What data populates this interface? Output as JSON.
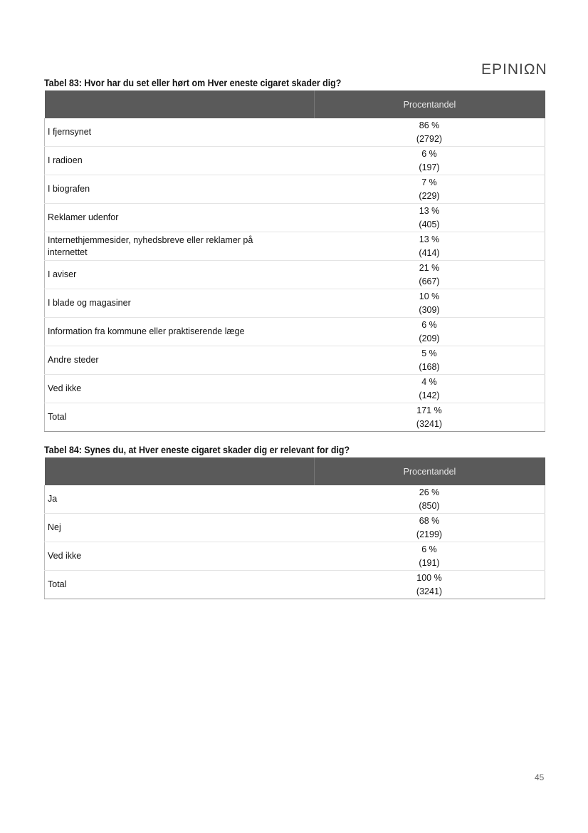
{
  "header": {
    "logo": "EPINIΩN"
  },
  "tables": [
    {
      "title": "Tabel 83: Hvor har du set eller hørt om Hver eneste cigaret skader dig?",
      "column": "Procentandel",
      "rows": [
        {
          "label": "I fjernsynet",
          "pct": "86 %",
          "n": "(2792)"
        },
        {
          "label": "I radioen",
          "pct": "6 %",
          "n": "(197)"
        },
        {
          "label": "I biografen",
          "pct": "7 %",
          "n": "(229)"
        },
        {
          "label": "Reklamer udenfor",
          "pct": "13 %",
          "n": "(405)"
        },
        {
          "label": "Internethjemmesider, nyhedsbreve eller reklamer på internettet",
          "pct": "13 %",
          "n": "(414)"
        },
        {
          "label": "I aviser",
          "pct": "21 %",
          "n": "(667)"
        },
        {
          "label": "I blade og magasiner",
          "pct": "10 %",
          "n": "(309)"
        },
        {
          "label": "Information fra kommune eller praktiserende læge",
          "pct": "6 %",
          "n": "(209)"
        },
        {
          "label": "Andre steder",
          "pct": "5 %",
          "n": "(168)"
        },
        {
          "label": "Ved ikke",
          "pct": "4 %",
          "n": "(142)"
        },
        {
          "label": "Total",
          "pct": "171 %",
          "n": "(3241)"
        }
      ]
    },
    {
      "title": "Tabel 84: Synes du, at Hver eneste cigaret skader dig er relevant for dig?",
      "column": "Procentandel",
      "rows": [
        {
          "label": "Ja",
          "pct": "26 %",
          "n": "(850)"
        },
        {
          "label": "Nej",
          "pct": "68 %",
          "n": "(2199)"
        },
        {
          "label": "Ved ikke",
          "pct": "6 %",
          "n": "(191)"
        },
        {
          "label": "Total",
          "pct": "100 %",
          "n": "(3241)"
        }
      ]
    }
  ],
  "footer": {
    "page_number": "45"
  }
}
